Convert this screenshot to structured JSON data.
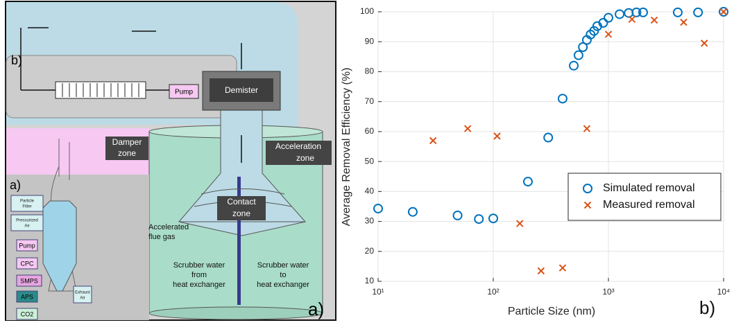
{
  "diagram": {
    "panel_b_label": "b)",
    "pump_top": "Pump",
    "demister": "Demister",
    "damper_zone": [
      "Damper",
      "zone"
    ],
    "acceleration_zone": [
      "Acceleration",
      "zone"
    ],
    "panel_a_small_label": "a)",
    "contact_zone": [
      "Contact",
      "zone"
    ],
    "accelerated_flue_gas": [
      "Accelerated",
      "flue gas"
    ],
    "scrubber_from": [
      "Scrubber water",
      "from",
      "heat exchanger"
    ],
    "scrubber_to": [
      "Scrubber water",
      "to",
      "heat exchanger"
    ],
    "panel_a_label": "a)",
    "instruments": {
      "particle_filter": [
        "Particle",
        "Filter"
      ],
      "pressurized_air": [
        "Pressurized",
        "Air"
      ],
      "pump": "Pump",
      "cpc": "CPC",
      "smps": "SMPS",
      "aps": "APS",
      "co2": "CO2",
      "exhaust_air": [
        "Exhaust",
        "Air"
      ]
    }
  },
  "chart_data": {
    "type": "scatter",
    "xlabel": "Particle Size (nm)",
    "ylabel": "Average Removal Efficiency (%)",
    "panel_label": "b)",
    "xscale": "log",
    "xlim": [
      10,
      10000
    ],
    "ylim": [
      10,
      100
    ],
    "xticks": [
      {
        "value": 10,
        "label": "10¹"
      },
      {
        "value": 100,
        "label": "10²"
      },
      {
        "value": 1000,
        "label": "10³"
      },
      {
        "value": 10000,
        "label": "10⁴"
      }
    ],
    "yticks": [
      10,
      20,
      30,
      40,
      50,
      60,
      70,
      80,
      90,
      100
    ],
    "grid": true,
    "legend": "lower right",
    "series": [
      {
        "name": "Simulated removal",
        "color": "#0072bd",
        "marker": "o",
        "x": [
          10,
          20,
          49,
          75,
          100,
          200,
          300,
          400,
          500,
          550,
          600,
          650,
          700,
          750,
          800,
          900,
          1000,
          1250,
          1500,
          1750,
          2000,
          4000,
          6000,
          10000
        ],
        "values": [
          34.3,
          33.2,
          32,
          30.8,
          31,
          43.3,
          58,
          71,
          82,
          85.5,
          88.2,
          90.6,
          92.4,
          93.6,
          95.2,
          96.3,
          98,
          99.2,
          99.6,
          99.8,
          99.8,
          99.8,
          99.8,
          100
        ]
      },
      {
        "name": "Measured removal",
        "color": "#d95319",
        "marker": "x",
        "x": [
          30,
          60,
          108,
          170,
          260,
          400,
          650,
          1000,
          1600,
          2500,
          4500,
          6800,
          10000
        ],
        "values": [
          57,
          61,
          58.5,
          29.3,
          13.5,
          14.5,
          61,
          92.5,
          97.5,
          97.2,
          96.5,
          89.5,
          100
        ]
      }
    ]
  }
}
